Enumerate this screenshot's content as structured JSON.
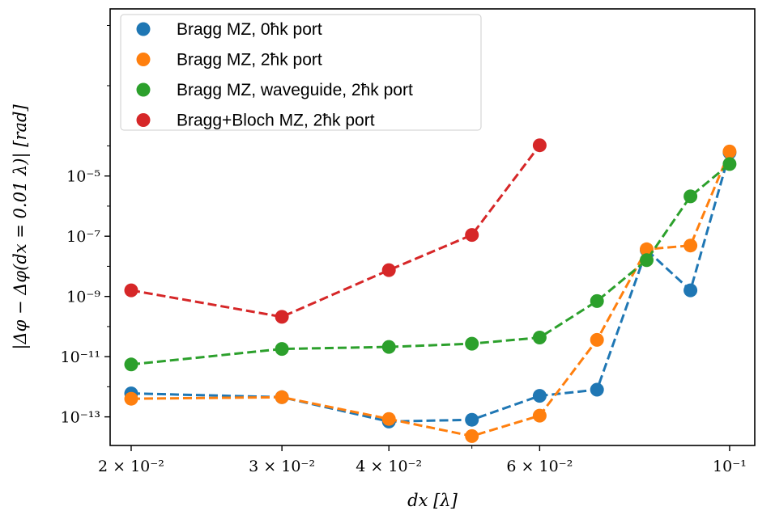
{
  "chart_data": {
    "type": "line",
    "title": "",
    "xlabel": "dx [λ]",
    "ylabel": "|Δφ − Δφ(dx = 0.01 λ)| [rad]",
    "x_scale": "log",
    "y_scale": "log",
    "xlim": [
      0.0189,
      0.107
    ],
    "ylim_exp": [
      -13.95,
      0.55
    ],
    "grid": false,
    "legend_position": "top-left",
    "x_ticks": [
      {
        "value": 0.02,
        "label": "2 × 10⁻²"
      },
      {
        "value": 0.03,
        "label": "3 × 10⁻²"
      },
      {
        "value": 0.04,
        "label": "4 × 10⁻²"
      },
      {
        "value": 0.06,
        "label": "6 × 10⁻²"
      },
      {
        "value": 0.1,
        "label": "10⁻¹"
      }
    ],
    "y_ticks": [
      {
        "exp": -13,
        "label": "10⁻¹³"
      },
      {
        "exp": -11,
        "label": "10⁻¹¹"
      },
      {
        "exp": -9,
        "label": "10⁻⁹"
      },
      {
        "exp": -7,
        "label": "10⁻⁷"
      },
      {
        "exp": -5,
        "label": "10⁻⁵"
      }
    ],
    "series": [
      {
        "name": "Bragg MZ, 0ħk port",
        "color": "#1f77b4",
        "x": [
          0.02,
          0.03,
          0.04,
          0.05,
          0.06,
          0.07,
          0.08,
          0.09,
          0.1
        ],
        "y": [
          6e-13,
          4.5e-13,
          7e-14,
          8e-14,
          5e-13,
          8e-13,
          3.5e-08,
          1.6e-09,
          6e-05
        ]
      },
      {
        "name": "Bragg MZ, 2ħk port",
        "color": "#ff7f0e",
        "x": [
          0.02,
          0.03,
          0.04,
          0.05,
          0.06,
          0.07,
          0.08,
          0.09,
          0.1
        ],
        "y": [
          4e-13,
          4.5e-13,
          8.5e-14,
          2.3e-14,
          1.1e-13,
          3.6e-11,
          3.7e-08,
          4.9e-08,
          6.5e-05
        ]
      },
      {
        "name": "Bragg MZ, waveguide, 2ħk port",
        "color": "#2ca02c",
        "x": [
          0.02,
          0.03,
          0.04,
          0.05,
          0.06,
          0.07,
          0.08,
          0.09,
          0.1
        ],
        "y": [
          5.5e-12,
          1.8e-11,
          2.1e-11,
          2.7e-11,
          4.3e-11,
          7e-10,
          1.6e-08,
          2.1e-06,
          2.5e-05
        ]
      },
      {
        "name": "Bragg+Bloch MZ, 2ħk port",
        "color": "#d62728",
        "x": [
          0.02,
          0.03,
          0.04,
          0.05,
          0.06
        ],
        "y": [
          1.6e-09,
          2.1e-10,
          7.5e-09,
          1.1e-07,
          0.000105
        ]
      }
    ]
  }
}
